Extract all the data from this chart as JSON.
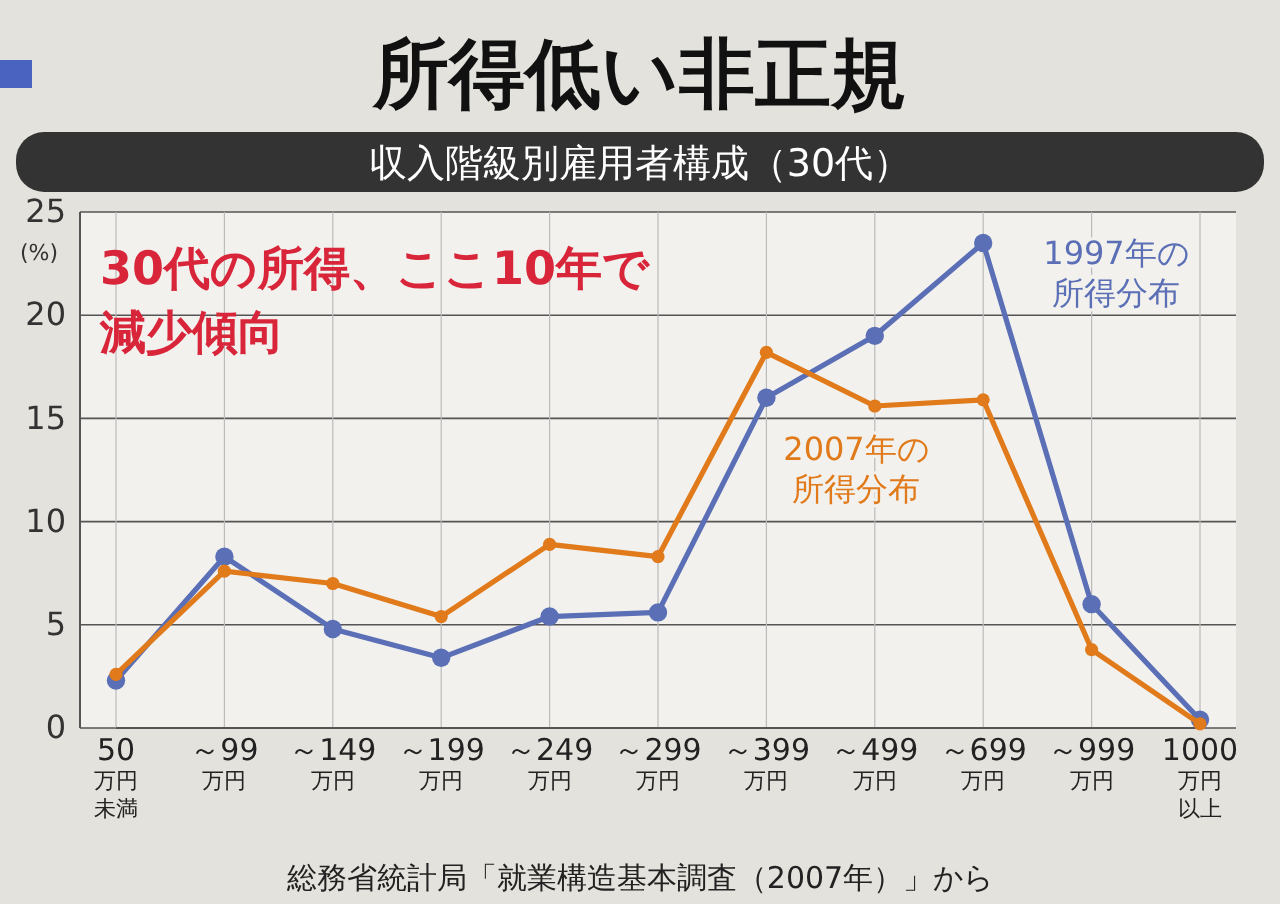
{
  "chart_data": {
    "type": "line",
    "title": "所得低い非正規",
    "subtitle": "収入階級別雇用者構成（30代）",
    "ylabel": "(%)",
    "categories": [
      "50万円未満",
      "～99万円",
      "～149万円",
      "～199万円",
      "～249万円",
      "～299万円",
      "～399万円",
      "～499万円",
      "～699万円",
      "～999万円",
      "1000万円以上"
    ],
    "series": [
      {
        "name": "1997年の所得分布",
        "color": "#5a6fb5",
        "values": [
          2.3,
          8.3,
          4.8,
          3.4,
          5.4,
          5.6,
          16,
          19,
          23.5,
          6,
          0.4
        ]
      },
      {
        "name": "2007年の所得分布",
        "color": "#e07a1a",
        "values": [
          2.6,
          7.6,
          7,
          5.4,
          8.9,
          8.3,
          18.2,
          15.6,
          15.9,
          3.8,
          0.2
        ]
      }
    ],
    "ylim": [
      0,
      25
    ],
    "yticks": [
      0,
      5,
      10,
      15,
      20,
      25
    ],
    "grid": true,
    "marker": "circle",
    "line_style": "solid",
    "annotations": [
      "30代の所得、ここ10年で減少傾向",
      "総務省統計局「就業構造基本調査（2007年）」から"
    ]
  }
}
